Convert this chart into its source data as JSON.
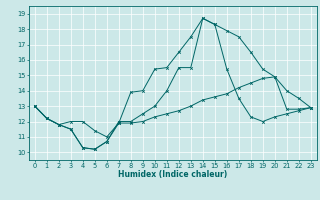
{
  "xlabel": "Humidex (Indice chaleur)",
  "bg_color": "#cce8e8",
  "grid_color": "#ffffff",
  "line_color": "#006666",
  "xlim": [
    -0.5,
    23.5
  ],
  "ylim": [
    9.5,
    19.5
  ],
  "xticks": [
    0,
    1,
    2,
    3,
    4,
    5,
    6,
    7,
    8,
    9,
    10,
    11,
    12,
    13,
    14,
    15,
    16,
    17,
    18,
    19,
    20,
    21,
    22,
    23
  ],
  "yticks": [
    10,
    11,
    12,
    13,
    14,
    15,
    16,
    17,
    18,
    19
  ],
  "line1_x": [
    0,
    1,
    2,
    3,
    4,
    5,
    6,
    7,
    8,
    9,
    10,
    11,
    12,
    13,
    14,
    15,
    16,
    17,
    18,
    19,
    20,
    21,
    22,
    23
  ],
  "line1_y": [
    13.0,
    12.2,
    11.8,
    11.5,
    10.3,
    10.2,
    10.7,
    12.0,
    12.0,
    12.5,
    13.0,
    14.0,
    15.5,
    15.5,
    18.7,
    18.3,
    17.9,
    17.5,
    16.5,
    15.4,
    14.9,
    14.0,
    13.5,
    12.9
  ],
  "line2_x": [
    0,
    1,
    2,
    3,
    4,
    5,
    6,
    7,
    8,
    9,
    10,
    11,
    12,
    13,
    14,
    15,
    16,
    17,
    18,
    19,
    20,
    21,
    22,
    23
  ],
  "line2_y": [
    13.0,
    12.2,
    11.8,
    11.5,
    10.3,
    10.2,
    10.7,
    11.9,
    13.9,
    14.0,
    15.4,
    15.5,
    16.5,
    17.5,
    18.7,
    18.3,
    15.4,
    13.5,
    12.3,
    12.0,
    12.3,
    12.5,
    12.7,
    12.9
  ],
  "line3_x": [
    0,
    1,
    2,
    3,
    4,
    5,
    6,
    7,
    8,
    9,
    10,
    11,
    12,
    13,
    14,
    15,
    16,
    17,
    18,
    19,
    20,
    21,
    22,
    23
  ],
  "line3_y": [
    13.0,
    12.2,
    11.8,
    12.0,
    12.0,
    11.4,
    11.0,
    11.9,
    11.9,
    12.0,
    12.3,
    12.5,
    12.7,
    13.0,
    13.4,
    13.6,
    13.8,
    14.2,
    14.5,
    14.8,
    14.9,
    12.8,
    12.8,
    12.9
  ],
  "xlabel_fontsize": 5.5,
  "tick_fontsize": 4.8,
  "lw": 0.7,
  "ms": 1.8
}
